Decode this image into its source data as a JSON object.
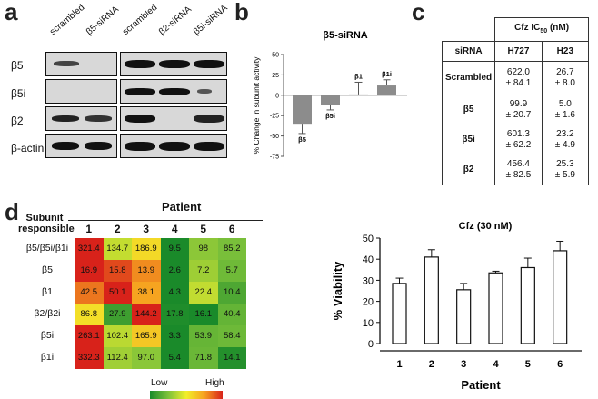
{
  "panels": {
    "a": "a",
    "b": "b",
    "c": "c",
    "d": "d"
  },
  "panel_a": {
    "lanes_left": [
      "scrambled",
      "β5-siRNA"
    ],
    "lanes_right": [
      "scrambled",
      "β2-siRNA",
      "β5i-siRNA"
    ],
    "rows": [
      "β5",
      "β5i",
      "β2",
      "β-actin"
    ]
  },
  "panel_c": {
    "header": "Cfz IC",
    "header_sub": "50",
    "header_unit": " (nM)",
    "col_siRNA": "siRNA",
    "col_h727": "H727",
    "col_h23": "H23",
    "rows": [
      {
        "name": "Scrambled",
        "h727a": "622.0",
        "h727b": "± 84.1",
        "h23a": "26.7",
        "h23b": "± 8.0"
      },
      {
        "name": "β5",
        "h727a": "99.9",
        "h727b": "± 20.7",
        "h23a": "5.0",
        "h23b": "± 1.6"
      },
      {
        "name": "β5i",
        "h727a": "601.3",
        "h727b": "± 62.2",
        "h23a": "23.2",
        "h23b": "± 4.9"
      },
      {
        "name": "β2",
        "h727a": "456.4",
        "h727b": "± 82.5",
        "h23a": "25.3",
        "h23b": "± 5.9"
      }
    ]
  },
  "panel_d": {
    "title": "Patient",
    "row_header_1": "Subunit",
    "row_header_2": "responsible",
    "patients": [
      "1",
      "2",
      "3",
      "4",
      "5",
      "6"
    ],
    "rows": [
      {
        "label": "β5/β5i/β1i",
        "values": [
          "321.4",
          "134.7",
          "186.9",
          "9.5",
          "98",
          "85.2"
        ]
      },
      {
        "label": "β5",
        "values": [
          "16.9",
          "15.8",
          "13.9",
          "2.6",
          "7.2",
          "5.7"
        ]
      },
      {
        "label": "β1",
        "values": [
          "42.5",
          "50.1",
          "38.1",
          "4.3",
          "22.4",
          "10.4"
        ]
      },
      {
        "label": "β2/β2i",
        "values": [
          "86.8",
          "27.9",
          "144.2",
          "17.8",
          "16.1",
          "40.4"
        ]
      },
      {
        "label": "β5i",
        "values": [
          "263.1",
          "102.4",
          "165.9",
          "3.3",
          "53.9",
          "58.4"
        ]
      },
      {
        "label": "β1i",
        "values": [
          "332.3",
          "112.4",
          "97.0",
          "5.4",
          "71.8",
          "14.1"
        ]
      }
    ],
    "legend_low": "Low",
    "legend_high": "High"
  },
  "chart_data": [
    {
      "type": "bar",
      "title": "β5-siRNA",
      "ylabel": "% Change in subunit activity",
      "categories": [
        "β5",
        "β5i",
        "β1",
        "β1i"
      ],
      "values": [
        -35,
        -12,
        1,
        12
      ],
      "errors": [
        12,
        6,
        15,
        7
      ],
      "ylim": [
        -75,
        50
      ],
      "yticks": [
        "50",
        "25",
        "0",
        "-25",
        "-50",
        "-75"
      ]
    },
    {
      "type": "bar",
      "title": "Cfz (30 nM)",
      "ylabel": "% Viability",
      "xlabel": "Patient",
      "categories": [
        "1",
        "2",
        "3",
        "4",
        "5",
        "6"
      ],
      "values": [
        28.5,
        41,
        25.5,
        33.5,
        36,
        44
      ],
      "errors": [
        2.5,
        3.5,
        3,
        0.8,
        4.5,
        4.5
      ],
      "ylim": [
        0,
        50
      ],
      "yticks": [
        "50",
        "40",
        "30",
        "20",
        "10",
        "0"
      ]
    }
  ]
}
